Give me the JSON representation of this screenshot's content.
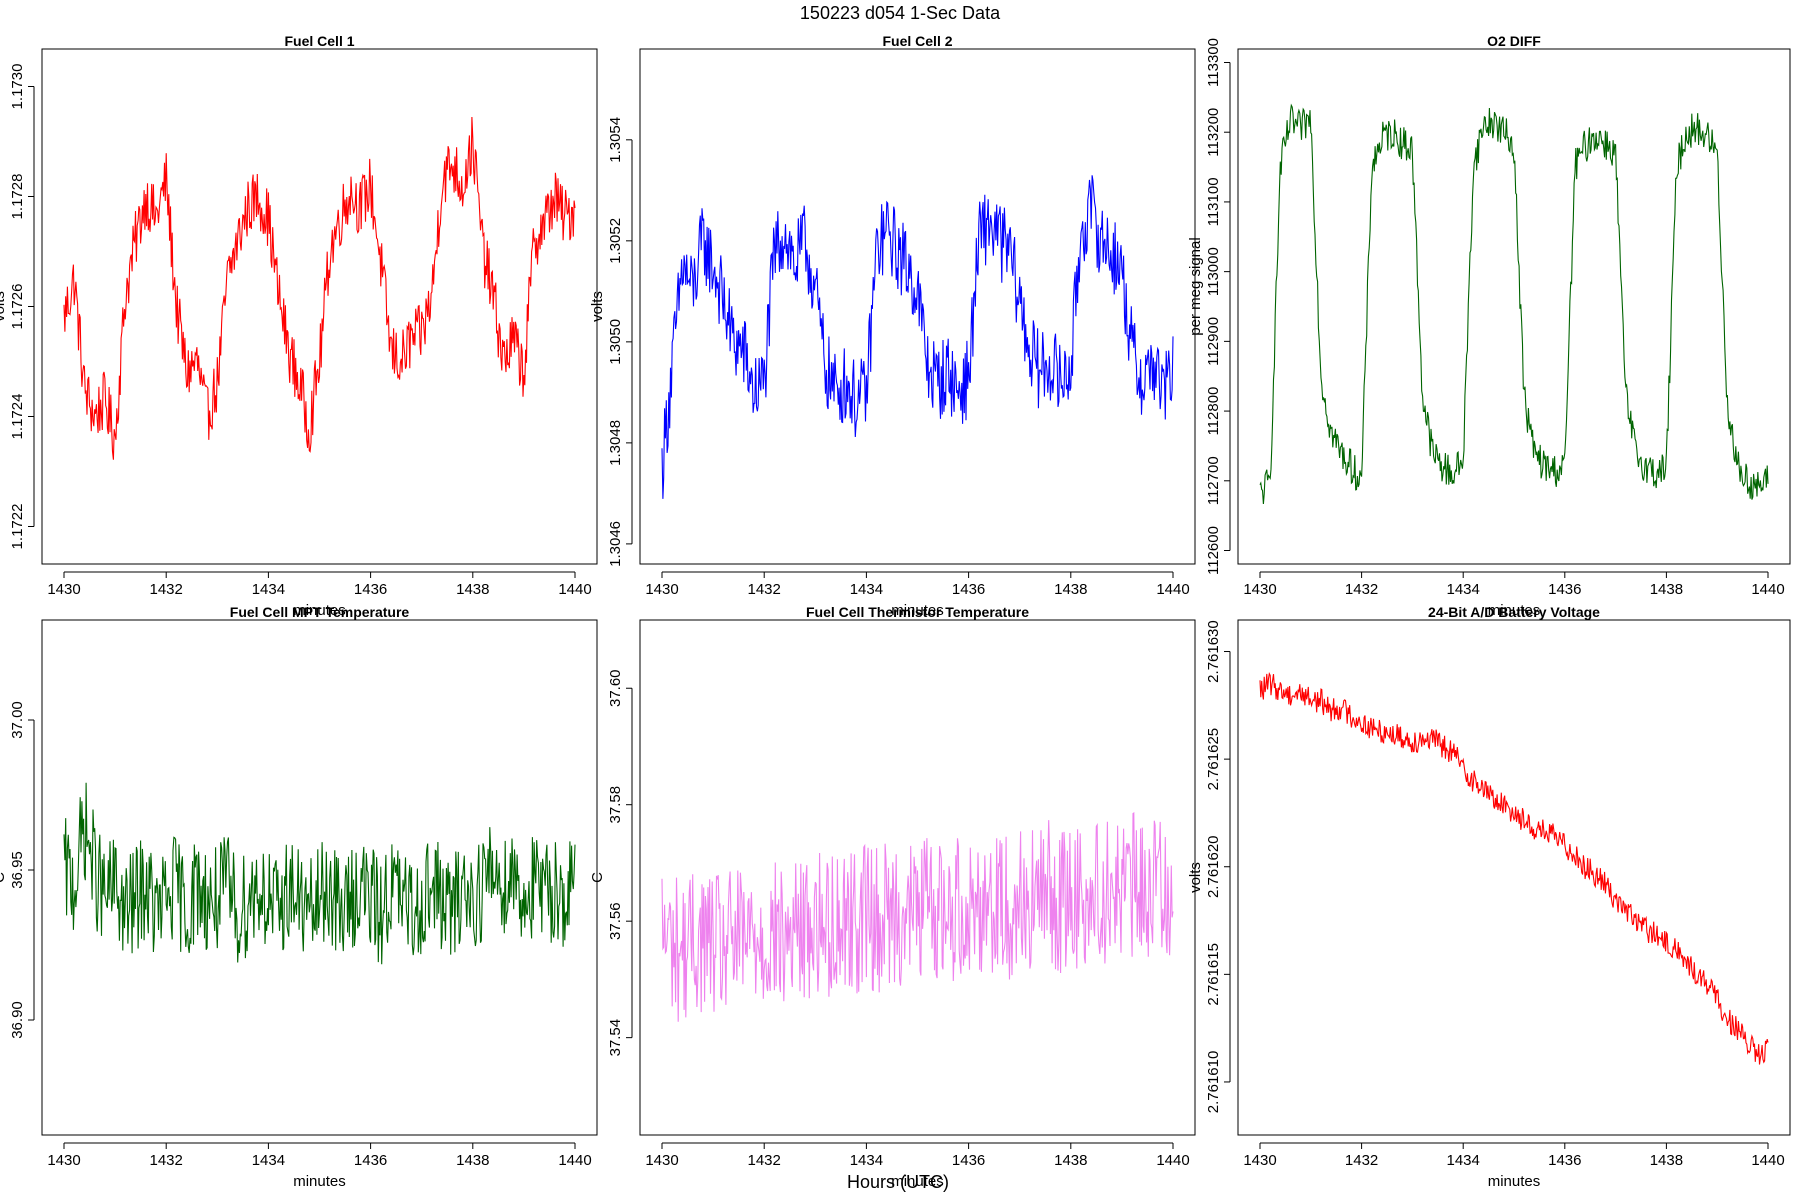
{
  "figure": {
    "title": "150223   d054   1-Sec Data",
    "xlabel_outer": "Hours (UTC)"
  },
  "chart_data": [
    {
      "type": "line",
      "title": "Fuel Cell 1",
      "xlabel": "minutes",
      "ylabel": "volts",
      "xlim": [
        1430,
        1440
      ],
      "ylim": [
        1.17215,
        1.17305
      ],
      "xticks": [
        "1430",
        "1432",
        "1434",
        "1436",
        "1438",
        "1440"
      ],
      "yticks": [
        "1.1722",
        "1.1724",
        "1.1726",
        "1.1728",
        "1.1730"
      ],
      "color": "#ff0000",
      "series": [
        {
          "name": "Fuel Cell 1",
          "x": [
            1430.0,
            1430.2,
            1430.4,
            1430.6,
            1430.8,
            1431.0,
            1431.2,
            1431.4,
            1431.6,
            1431.8,
            1432.0,
            1432.2,
            1432.4,
            1432.6,
            1432.8,
            1433.0,
            1433.2,
            1433.4,
            1433.6,
            1433.8,
            1434.0,
            1434.2,
            1434.4,
            1434.6,
            1434.8,
            1435.0,
            1435.2,
            1435.4,
            1435.6,
            1435.8,
            1436.0,
            1436.2,
            1436.4,
            1436.6,
            1436.8,
            1437.0,
            1437.2,
            1437.4,
            1437.6,
            1437.8,
            1438.0,
            1438.2,
            1438.4,
            1438.6,
            1438.8,
            1439.0,
            1439.2,
            1439.4,
            1439.6,
            1439.8,
            1440.0
          ],
          "y": [
            1.17258,
            1.17265,
            1.17245,
            1.1724,
            1.17243,
            1.17236,
            1.17262,
            1.17272,
            1.1728,
            1.17276,
            1.17283,
            1.1726,
            1.17248,
            1.1725,
            1.1724,
            1.17246,
            1.17265,
            1.17272,
            1.17278,
            1.1728,
            1.17276,
            1.17262,
            1.17252,
            1.17246,
            1.17238,
            1.1725,
            1.1727,
            1.17276,
            1.17281,
            1.17278,
            1.17282,
            1.17268,
            1.17252,
            1.1725,
            1.17254,
            1.17255,
            1.17262,
            1.17283,
            1.17286,
            1.17282,
            1.1729,
            1.1727,
            1.17262,
            1.1725,
            1.17254,
            1.17248,
            1.17272,
            1.17275,
            1.1728,
            1.17276,
            1.17278
          ]
        }
      ]
    },
    {
      "type": "line",
      "title": "Fuel Cell 2",
      "xlabel": "minutes",
      "ylabel": "volts",
      "xlim": [
        1430,
        1440
      ],
      "ylim": [
        1.30458,
        1.30556
      ],
      "xticks": [
        "1430",
        "1432",
        "1434",
        "1436",
        "1438",
        "1440"
      ],
      "yticks": [
        "1.3046",
        "1.3048",
        "1.3050",
        "1.3052",
        "1.3054"
      ],
      "color": "#0000ff",
      "series": [
        {
          "name": "Fuel Cell 2",
          "x": [
            1430.0,
            1430.2,
            1430.4,
            1430.6,
            1430.8,
            1431.0,
            1431.2,
            1431.4,
            1431.6,
            1431.8,
            1432.0,
            1432.2,
            1432.4,
            1432.6,
            1432.8,
            1433.0,
            1433.2,
            1433.4,
            1433.6,
            1433.8,
            1434.0,
            1434.2,
            1434.4,
            1434.6,
            1434.8,
            1435.0,
            1435.2,
            1435.4,
            1435.6,
            1435.8,
            1436.0,
            1436.2,
            1436.4,
            1436.6,
            1436.8,
            1437.0,
            1437.2,
            1437.4,
            1437.6,
            1437.8,
            1438.0,
            1438.2,
            1438.4,
            1438.6,
            1438.8,
            1439.0,
            1439.2,
            1439.4,
            1439.6,
            1439.8,
            1440.0
          ],
          "y": [
            1.30475,
            1.30495,
            1.30515,
            1.3051,
            1.3052,
            1.30515,
            1.30508,
            1.305,
            1.30498,
            1.3049,
            1.30492,
            1.30518,
            1.30522,
            1.30515,
            1.3052,
            1.3051,
            1.30495,
            1.3049,
            1.30492,
            1.30488,
            1.3049,
            1.30518,
            1.30522,
            1.30518,
            1.30515,
            1.3051,
            1.30495,
            1.30492,
            1.30494,
            1.3049,
            1.30493,
            1.3052,
            1.30524,
            1.3052,
            1.30518,
            1.30508,
            1.30498,
            1.30494,
            1.30496,
            1.30492,
            1.30495,
            1.30522,
            1.30526,
            1.3052,
            1.30518,
            1.30514,
            1.30498,
            1.30492,
            1.30496,
            1.3049,
            1.30494
          ]
        }
      ]
    },
    {
      "type": "line",
      "title": "O2 DIFF",
      "xlabel": "minutes",
      "ylabel": "per meg signal",
      "xlim": [
        1430,
        1440
      ],
      "ylim": [
        112595,
        113305
      ],
      "xticks": [
        "1430",
        "1432",
        "1434",
        "1436",
        "1438",
        "1440"
      ],
      "yticks": [
        "112600",
        "112700",
        "112800",
        "112900",
        "113000",
        "113100",
        "113200",
        "113300"
      ],
      "color": "#006400",
      "series": [
        {
          "name": "O2 DIFF",
          "x": [
            1430.0,
            1430.2,
            1430.4,
            1430.6,
            1430.8,
            1431.0,
            1431.2,
            1431.4,
            1431.6,
            1431.8,
            1432.0,
            1432.2,
            1432.4,
            1432.6,
            1432.8,
            1433.0,
            1433.2,
            1433.4,
            1433.6,
            1433.8,
            1434.0,
            1434.2,
            1434.4,
            1434.6,
            1434.8,
            1435.0,
            1435.2,
            1435.4,
            1435.6,
            1435.8,
            1436.0,
            1436.2,
            1436.4,
            1436.6,
            1436.8,
            1437.0,
            1437.2,
            1437.4,
            1437.6,
            1437.8,
            1438.0,
            1438.2,
            1438.4,
            1438.6,
            1438.8,
            1439.0,
            1439.2,
            1439.4,
            1439.6,
            1439.8,
            1440.0
          ],
          "y": [
            112680,
            112700,
            113150,
            113215,
            113205,
            113220,
            112850,
            112770,
            112740,
            112720,
            112700,
            113150,
            113190,
            113200,
            113185,
            113175,
            112820,
            112740,
            112720,
            112710,
            112730,
            113150,
            113210,
            113215,
            113200,
            113180,
            112820,
            112740,
            112720,
            112715,
            112720,
            113150,
            113180,
            113195,
            113185,
            113170,
            112820,
            112740,
            112720,
            112710,
            112720,
            113150,
            113200,
            113205,
            113195,
            113170,
            112810,
            112720,
            112700,
            112690,
            112700
          ]
        }
      ]
    },
    {
      "type": "line",
      "title": "Fuel Cell MPT Temperature",
      "xlabel": "minutes",
      "ylabel": "C",
      "xlim": [
        1430,
        1440
      ],
      "ylim": [
        36.865,
        37.03
      ],
      "xticks": [
        "1430",
        "1432",
        "1434",
        "1436",
        "1438",
        "1440"
      ],
      "yticks": [
        "36.90",
        "36.95",
        "37.00"
      ],
      "color": "#006400",
      "series": [
        {
          "name": "Fuel Cell MPT Temperature",
          "x": [
            1430.0,
            1430.2,
            1430.4,
            1430.6,
            1430.8,
            1431.0,
            1431.2,
            1431.4,
            1431.6,
            1431.8,
            1432.0,
            1432.2,
            1432.4,
            1432.6,
            1432.8,
            1433.0,
            1433.2,
            1433.4,
            1433.6,
            1433.8,
            1434.0,
            1434.2,
            1434.4,
            1434.6,
            1434.8,
            1435.0,
            1435.2,
            1435.4,
            1435.6,
            1435.8,
            1436.0,
            1436.2,
            1436.4,
            1436.6,
            1436.8,
            1437.0,
            1437.2,
            1437.4,
            1437.6,
            1437.8,
            1438.0,
            1438.2,
            1438.4,
            1438.6,
            1438.8,
            1439.0,
            1439.2,
            1439.4,
            1439.6,
            1439.8,
            1440.0
          ],
          "y": [
            36.95,
            36.945,
            36.965,
            36.95,
            36.94,
            36.945,
            36.935,
            36.94,
            36.945,
            36.935,
            36.94,
            36.945,
            36.935,
            36.945,
            36.94,
            36.94,
            36.945,
            36.935,
            36.94,
            36.945,
            36.94,
            36.935,
            36.945,
            36.94,
            36.935,
            36.94,
            36.945,
            36.935,
            36.94,
            36.945,
            36.94,
            36.935,
            36.945,
            36.94,
            36.935,
            36.94,
            36.945,
            36.94,
            36.935,
            36.945,
            36.94,
            36.945,
            36.95,
            36.945,
            36.95,
            36.94,
            36.945,
            36.94,
            36.945,
            36.94,
            36.945
          ]
        }
      ]
    },
    {
      "type": "line",
      "title": "Fuel Cell Thermistor Temperature",
      "xlabel": "minutes",
      "ylabel": "C",
      "xlim": [
        1430,
        1440
      ],
      "ylim": [
        37.525,
        37.61
      ],
      "xticks": [
        "1430",
        "1432",
        "1434",
        "1436",
        "1438",
        "1440"
      ],
      "yticks": [
        "37.54",
        "37.56",
        "37.58",
        "37.60"
      ],
      "color": "#ee82ee",
      "series": [
        {
          "name": "Fuel Cell Thermistor Temperature",
          "x": [
            1430.0,
            1430.2,
            1430.4,
            1430.6,
            1430.8,
            1431.0,
            1431.2,
            1431.4,
            1431.6,
            1431.8,
            1432.0,
            1432.2,
            1432.4,
            1432.6,
            1432.8,
            1433.0,
            1433.2,
            1433.4,
            1433.6,
            1433.8,
            1434.0,
            1434.2,
            1434.4,
            1434.6,
            1434.8,
            1435.0,
            1435.2,
            1435.4,
            1435.6,
            1435.8,
            1436.0,
            1436.2,
            1436.4,
            1436.6,
            1436.8,
            1437.0,
            1437.2,
            1437.4,
            1437.6,
            1437.8,
            1438.0,
            1438.2,
            1438.4,
            1438.6,
            1438.8,
            1439.0,
            1439.2,
            1439.4,
            1439.6,
            1439.8,
            1440.0
          ],
          "y": [
            37.558,
            37.556,
            37.555,
            37.556,
            37.557,
            37.556,
            37.555,
            37.557,
            37.556,
            37.558,
            37.557,
            37.558,
            37.556,
            37.559,
            37.558,
            37.56,
            37.559,
            37.56,
            37.561,
            37.56,
            37.562,
            37.56,
            37.561,
            37.562,
            37.561,
            37.562,
            37.563,
            37.562,
            37.561,
            37.563,
            37.562,
            37.563,
            37.564,
            37.563,
            37.562,
            37.564,
            37.563,
            37.564,
            37.565,
            37.563,
            37.564,
            37.565,
            37.564,
            37.565,
            37.566,
            37.565,
            37.566,
            37.565,
            37.566,
            37.567,
            37.566
          ]
        }
      ]
    },
    {
      "type": "line",
      "title": "24-Bit A/D Battery Voltage",
      "xlabel": "minutes",
      "ylabel": "volts",
      "xlim": [
        1430,
        1440
      ],
      "ylim": [
        2.761608,
        2.761631
      ],
      "xticks": [
        "1430",
        "1432",
        "1434",
        "1436",
        "1438",
        "1440"
      ],
      "yticks": [
        "2.761610",
        "2.761615",
        "2.761620",
        "2.761625",
        "2.761630"
      ],
      "color": "#ff0000",
      "series": [
        {
          "name": "24-Bit A/D Battery Voltage",
          "x": [
            1430.0,
            1430.2,
            1430.4,
            1430.6,
            1430.8,
            1431.0,
            1431.2,
            1431.4,
            1431.6,
            1431.8,
            1432.0,
            1432.2,
            1432.4,
            1432.6,
            1432.8,
            1433.0,
            1433.2,
            1433.4,
            1433.6,
            1433.8,
            1434.0,
            1434.2,
            1434.4,
            1434.6,
            1434.8,
            1435.0,
            1435.2,
            1435.4,
            1435.6,
            1435.8,
            1436.0,
            1436.2,
            1436.4,
            1436.6,
            1436.8,
            1437.0,
            1437.2,
            1437.4,
            1437.6,
            1437.8,
            1438.0,
            1438.2,
            1438.4,
            1438.6,
            1438.8,
            1439.0,
            1439.2,
            1439.4,
            1439.6,
            1439.8,
            1440.0
          ],
          "y": [
            2.7616282,
            2.7616285,
            2.7616282,
            2.761628,
            2.7616281,
            2.7616278,
            2.7616277,
            2.7616273,
            2.7616274,
            2.761627,
            2.7616267,
            2.7616264,
            2.7616263,
            2.7616262,
            2.761626,
            2.7616258,
            2.761626,
            2.7616259,
            2.7616256,
            2.7616253,
            2.7616246,
            2.761624,
            2.7616236,
            2.7616232,
            2.7616228,
            2.7616226,
            2.7616221,
            2.7616218,
            2.7616216,
            2.7616214,
            2.761621,
            2.7616206,
            2.76162,
            2.7616196,
            2.7616192,
            2.7616185,
            2.761618,
            2.7616175,
            2.7616171,
            2.7616168,
            2.7616164,
            2.7616162,
            2.7616155,
            2.761615,
            2.7616146,
            2.7616138,
            2.761613,
            2.7616124,
            2.7616118,
            2.7616112,
            2.7616115
          ]
        }
      ]
    }
  ]
}
